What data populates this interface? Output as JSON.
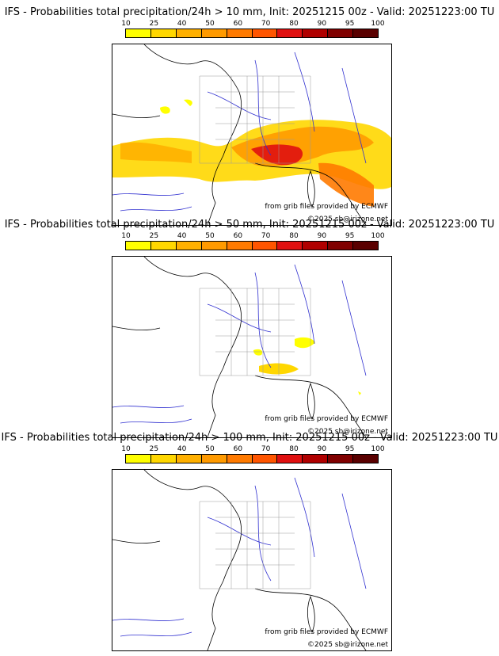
{
  "colorbar": {
    "ticks": [
      "10",
      "25",
      "40",
      "50",
      "60",
      "70",
      "80",
      "90",
      "95",
      "100"
    ],
    "colors": [
      "#ffff00",
      "#ffd700",
      "#ffb000",
      "#ff9a00",
      "#ff7a00",
      "#ff5500",
      "#e01010",
      "#b00000",
      "#800000",
      "#5a0000"
    ]
  },
  "panels": [
    {
      "title": "IFS - Probabilities total precipitation/24h > 10 mm, Init: 20251215 00z - Valid: 20251223:00 TU",
      "credit1": "from grib files provided by ECMWF",
      "credit2": "©2025 sb@irizone.net"
    },
    {
      "title": "IFS - Probabilities total precipitation/24h > 50 mm, Init: 20251215 00z - Valid: 20251223:00 TU",
      "credit1": "from grib files provided by ECMWF",
      "credit2": "©2025 sb@irizone.net"
    },
    {
      "title": "IFS - Probabilities total precipitation/24h > 100 mm, Init: 20251215 00z - Valid: 20251223:00 TU",
      "credit1": "from grib files provided by ECMWF",
      "credit2": "©2025 sb@irizone.net"
    }
  ]
}
